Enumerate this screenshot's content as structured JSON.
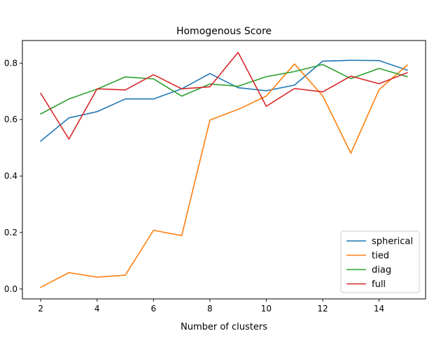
{
  "chart_data": {
    "type": "line",
    "title": "Homogenous Score",
    "xlabel": "Number of clusters",
    "ylabel": "",
    "x": [
      2,
      3,
      4,
      5,
      6,
      7,
      8,
      9,
      10,
      11,
      12,
      13,
      14,
      15
    ],
    "xlim": [
      1.35,
      15.65
    ],
    "ylim": [
      -0.035,
      0.88
    ],
    "xticks": [
      2,
      4,
      6,
      8,
      10,
      12,
      14
    ],
    "yticks": [
      0.0,
      0.2,
      0.4,
      0.6,
      0.8
    ],
    "ytick_labels": [
      "0.0",
      "0.2",
      "0.4",
      "0.6",
      "0.8"
    ],
    "grid": false,
    "legend_position": "lower-right",
    "series": [
      {
        "name": "spherical",
        "color": "#1f77b4",
        "values": [
          0.524,
          0.606,
          0.628,
          0.673,
          0.673,
          0.709,
          0.763,
          0.713,
          0.702,
          0.722,
          0.807,
          0.81,
          0.809,
          0.775
        ]
      },
      {
        "name": "tied",
        "color": "#ff7f0e",
        "values": [
          0.006,
          0.058,
          0.042,
          0.049,
          0.208,
          0.189,
          0.598,
          0.636,
          0.683,
          0.797,
          0.684,
          0.481,
          0.706,
          0.793
        ]
      },
      {
        "name": "diag",
        "color": "#2ca02c",
        "values": [
          0.62,
          0.673,
          0.708,
          0.751,
          0.744,
          0.683,
          0.726,
          0.718,
          0.752,
          0.77,
          0.795,
          0.745,
          0.781,
          0.752
        ]
      },
      {
        "name": "full",
        "color": "#d62728",
        "values": [
          0.693,
          0.531,
          0.709,
          0.705,
          0.759,
          0.709,
          0.716,
          0.838,
          0.647,
          0.71,
          0.698,
          0.754,
          0.727,
          0.766
        ]
      }
    ]
  }
}
